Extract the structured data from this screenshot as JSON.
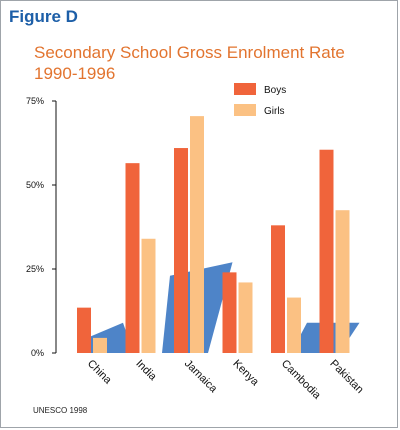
{
  "figure_label": "Figure D",
  "source": "UNESCO 1998",
  "colors": {
    "boys": "#f0643b",
    "girls": "#fbc183",
    "title": "#e2742f",
    "figure_label": "#1d5fa8",
    "band": "#2f6fbe"
  },
  "chart_data": {
    "type": "bar",
    "title": "Secondary School Gross Enrolment Rate",
    "subtitle": "1990-1996",
    "xlabel": "",
    "ylabel": "",
    "ylim": [
      0,
      75
    ],
    "yticks": [
      "0%",
      "25%",
      "50%",
      "75%"
    ],
    "ytick_values": [
      0,
      25,
      50,
      75
    ],
    "categories": [
      "China",
      "India",
      "Jamaica",
      "Kenya",
      "Cambodia",
      "Pakistan"
    ],
    "series": [
      {
        "name": "Boys",
        "values": [
          13.5,
          56.5,
          61,
          24,
          38,
          60.5
        ]
      },
      {
        "name": "Girls",
        "values": [
          4.5,
          34,
          70.5,
          21,
          16.5,
          42.5
        ]
      }
    ],
    "legend_position": "top-right",
    "grid": false
  }
}
